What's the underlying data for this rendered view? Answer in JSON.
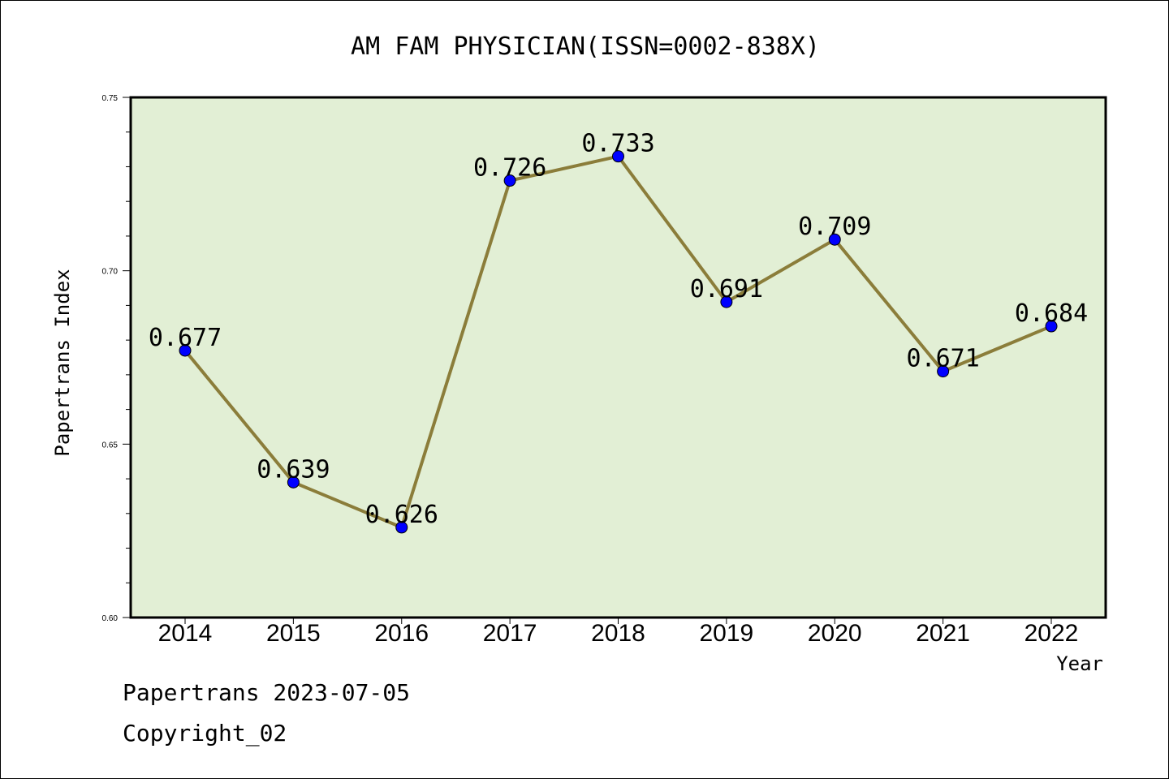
{
  "chart_data": {
    "type": "line",
    "title": "AM FAM PHYSICIAN(ISSN=0002-838X)",
    "xlabel": "Year",
    "ylabel": "Papertrans Index",
    "categories": [
      "2014",
      "2015",
      "2016",
      "2017",
      "2018",
      "2019",
      "2020",
      "2021",
      "2022"
    ],
    "series": [
      {
        "values": [
          0.677,
          0.639,
          0.626,
          0.726,
          0.733,
          0.691,
          0.709,
          0.671,
          0.684
        ],
        "data_labels": [
          "0.677",
          "0.639",
          "0.626",
          "0.726",
          "0.733",
          "0.691",
          "0.709",
          "0.671",
          "0.684"
        ]
      }
    ],
    "ylim": [
      0.6,
      0.75
    ],
    "yticks": [
      "0.60",
      "0.65",
      "0.70",
      "0.75"
    ],
    "grid": false,
    "colors": {
      "plot_background": "#e2efd5",
      "line": "#8b7d3a",
      "marker": "#0000ff"
    }
  },
  "footer": {
    "date_line": "Papertrans 2023-07-05",
    "copyright": "Copyright_02"
  }
}
